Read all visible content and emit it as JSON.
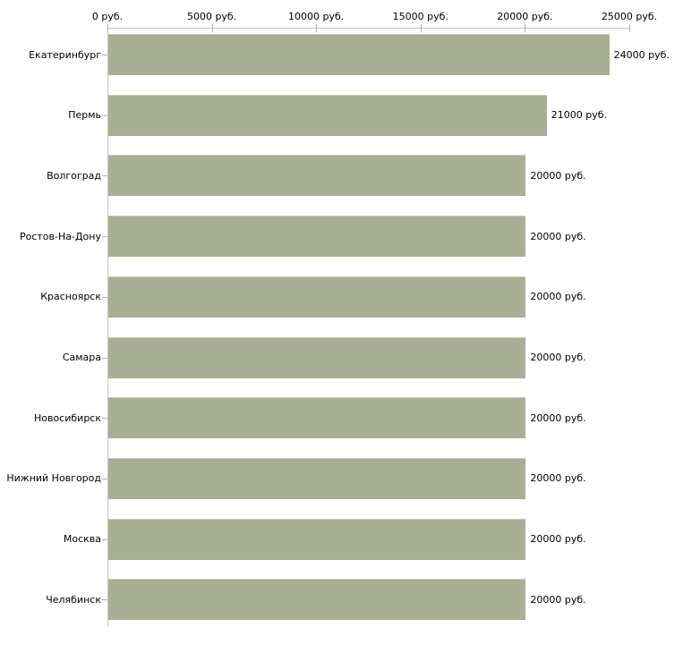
{
  "colors": {
    "bar": "#a9af94",
    "bar_highlight": "#c6c9b8",
    "axis": "#c6c6c6",
    "tick": "#b2b48e",
    "text": "#000000",
    "background": "#ffffff"
  },
  "chart_data": {
    "type": "bar",
    "orientation": "horizontal",
    "title": "",
    "xlabel": "",
    "ylabel": "",
    "unit_suffix": "руб.",
    "categories": [
      "Екатеринбург",
      "Пермь",
      "Волгоград",
      "Ростов-На-Дону",
      "Красноярск",
      "Самара",
      "Новосибирск",
      "Нижний Новгород",
      "Москва",
      "Челябинск"
    ],
    "values": [
      24000,
      21000,
      20000,
      20000,
      20000,
      20000,
      20000,
      20000,
      20000,
      20000
    ],
    "value_labels": [
      "24000 руб.",
      "21000 руб.",
      "20000 руб.",
      "20000 руб.",
      "20000 руб.",
      "20000 руб.",
      "20000 руб.",
      "20000 руб.",
      "20000 руб.",
      "20000 руб."
    ],
    "x_tick_values": [
      0,
      5000,
      10000,
      15000,
      20000,
      25000
    ],
    "x_tick_labels": [
      "0 руб.",
      "5000 руб.",
      "10000 руб.",
      "15000 руб.",
      "20000 руб.",
      "25000 руб."
    ],
    "xlim": [
      0,
      25000
    ],
    "grid": "off",
    "legend": "none"
  }
}
